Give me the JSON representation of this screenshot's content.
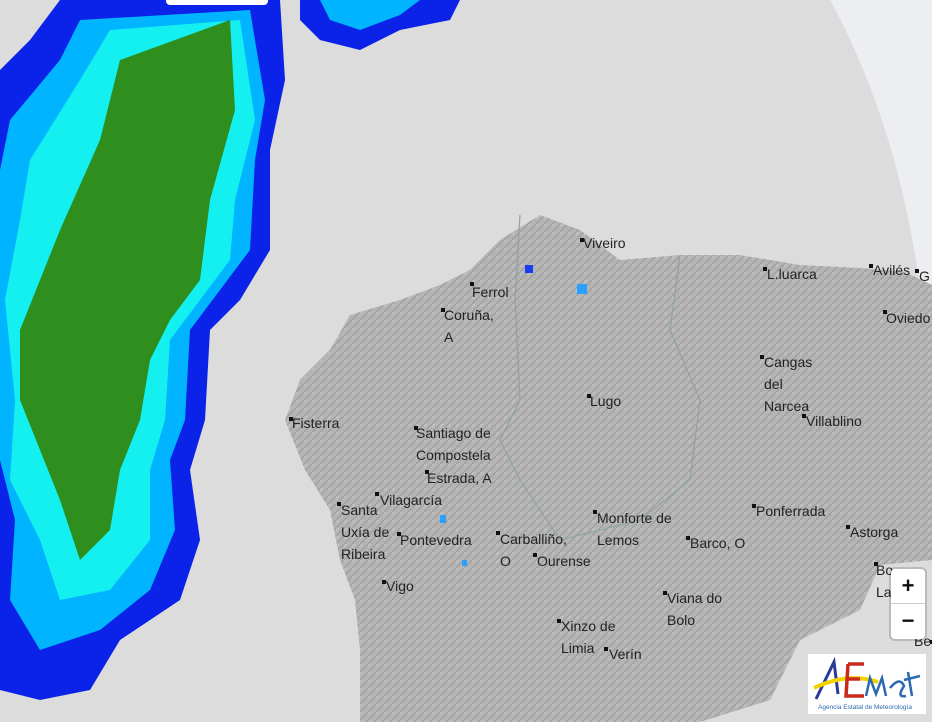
{
  "map": {
    "type": "precipitation radar",
    "colors": {
      "background": "#dcdcdc",
      "land": "#b2b2b2",
      "radar_low": "#0b22e8",
      "radar_mid": "#00b4ff",
      "radar_cyan": "#14f0f0",
      "radar_high": "#2e8f1e"
    },
    "places": [
      {
        "name": "Viveiro"
      },
      {
        "name": "Ferrol"
      },
      {
        "name": "Coruña, A"
      },
      {
        "name": "Fisterra"
      },
      {
        "name": "Santiago de Compostela"
      },
      {
        "name": "Estrada, A"
      },
      {
        "name": "Lugo"
      },
      {
        "name": "Vilagarcía"
      },
      {
        "name": "Santa Uxía de Ribeira"
      },
      {
        "name": "Pontevedra"
      },
      {
        "name": "Carballiño, O"
      },
      {
        "name": "Ourense"
      },
      {
        "name": "Vigo"
      },
      {
        "name": "Monforte de Lemos"
      },
      {
        "name": "Barco, O"
      },
      {
        "name": "Ponferrada"
      },
      {
        "name": "Astorga"
      },
      {
        "name": "Viana do Bolo"
      },
      {
        "name": "Xinzo de Limia"
      },
      {
        "name": "Verín"
      },
      {
        "name": "L.luarca"
      },
      {
        "name": "Avilés"
      },
      {
        "name": "G"
      },
      {
        "name": "Oviedo"
      },
      {
        "name": "Cangas del Narcea"
      },
      {
        "name": "Villablino"
      },
      {
        "name": "Bo La"
      },
      {
        "name": "Be"
      }
    ]
  },
  "controls": {
    "zoom_in": "+",
    "zoom_out": "−"
  },
  "logo": {
    "brand": "AEMet",
    "subtitle": "Agencia Estatal de Meteorología"
  }
}
